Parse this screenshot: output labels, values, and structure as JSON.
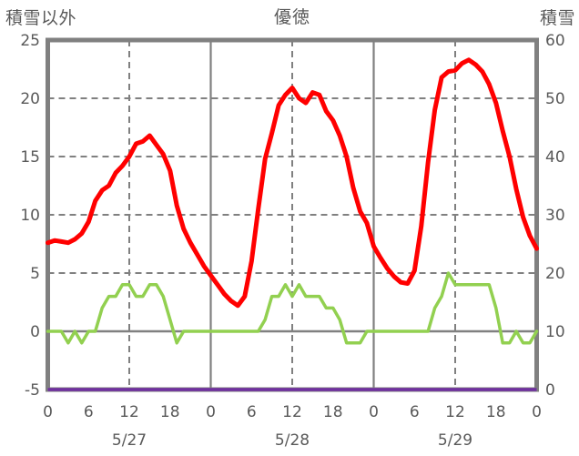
{
  "header": {
    "left_axis_label": "積雪以外",
    "title": "優徳",
    "right_axis_label": "積雪"
  },
  "chart_data": {
    "type": "line",
    "title": "優徳",
    "left_axis": {
      "label": "積雪以外",
      "min": -5,
      "max": 25,
      "ticks": [
        25,
        20,
        15,
        10,
        5,
        0,
        -5
      ]
    },
    "right_axis": {
      "label": "積雪",
      "min": 0,
      "max": 60,
      "ticks": [
        60,
        50,
        40,
        30,
        20,
        10,
        0
      ]
    },
    "x_axis": {
      "unit": "hour",
      "range_hours": [
        0,
        72
      ],
      "tick_hours": [
        0,
        6,
        12,
        18,
        24,
        30,
        36,
        42,
        48,
        54,
        60,
        66,
        72
      ],
      "tick_labels": [
        "0",
        "6",
        "12",
        "18",
        "0",
        "6",
        "12",
        "18",
        "0",
        "6",
        "12",
        "18",
        "0"
      ],
      "day_labels": [
        "5/27",
        "5/28",
        "5/29"
      ],
      "day_label_hours": [
        12,
        36,
        60
      ],
      "solid_grid_hours": [
        24,
        48
      ],
      "dashed_grid_hours": [
        12,
        36,
        60
      ]
    },
    "grid": {
      "dashed_levels": [
        20,
        15,
        10,
        5
      ],
      "solid_levels": [
        0
      ],
      "color": "#808080"
    },
    "series": [
      {
        "name": "red",
        "axis": "left",
        "color": "#FF0000",
        "stroke_width": 5,
        "values": [
          7.6,
          7.8,
          7.7,
          7.6,
          7.9,
          8.4,
          9.4,
          11.2,
          12.1,
          12.5,
          13.6,
          14.2,
          15.0,
          16.1,
          16.3,
          16.8,
          16.0,
          15.2,
          13.8,
          10.8,
          8.8,
          7.6,
          6.6,
          5.6,
          4.8,
          4.0,
          3.2,
          2.6,
          2.2,
          3.0,
          6.0,
          10.5,
          14.8,
          17.0,
          19.4,
          20.3,
          20.9,
          20.0,
          19.6,
          20.5,
          20.3,
          18.9,
          18.1,
          16.8,
          15.0,
          12.3,
          10.3,
          9.3,
          7.3,
          6.3,
          5.4,
          4.7,
          4.2,
          4.1,
          5.2,
          9.0,
          14.5,
          19.0,
          21.8,
          22.3,
          22.4,
          23.0,
          23.3,
          22.9,
          22.3,
          21.2,
          19.6,
          17.2,
          15.0,
          12.2,
          9.8,
          8.2,
          7.1
        ]
      },
      {
        "name": "green",
        "axis": "left",
        "color": "#92D050",
        "stroke_width": 3.5,
        "values": [
          0,
          0,
          0,
          -1,
          0,
          -1,
          0,
          0,
          2,
          3,
          3,
          4,
          4,
          3,
          3,
          4,
          4,
          3,
          1,
          -1,
          0,
          0,
          0,
          0,
          0,
          0,
          0,
          0,
          0,
          0,
          0,
          0,
          1,
          3,
          3,
          4,
          3,
          4,
          3,
          3,
          3,
          2,
          2,
          1,
          -1,
          -1,
          -1,
          0,
          0,
          0,
          0,
          0,
          0,
          0,
          0,
          0,
          0,
          2,
          3,
          5,
          4,
          4,
          4,
          4,
          4,
          4,
          2,
          -1,
          -1,
          0,
          -1,
          -1,
          0
        ]
      },
      {
        "name": "snow-depth",
        "axis": "right",
        "color": "#7030A0",
        "stroke_width": 3.5,
        "constant_value": 0
      }
    ]
  },
  "colors": {
    "background": "#FFFFFF",
    "border": "#808080",
    "grid": "#808080",
    "text": "#595959"
  }
}
